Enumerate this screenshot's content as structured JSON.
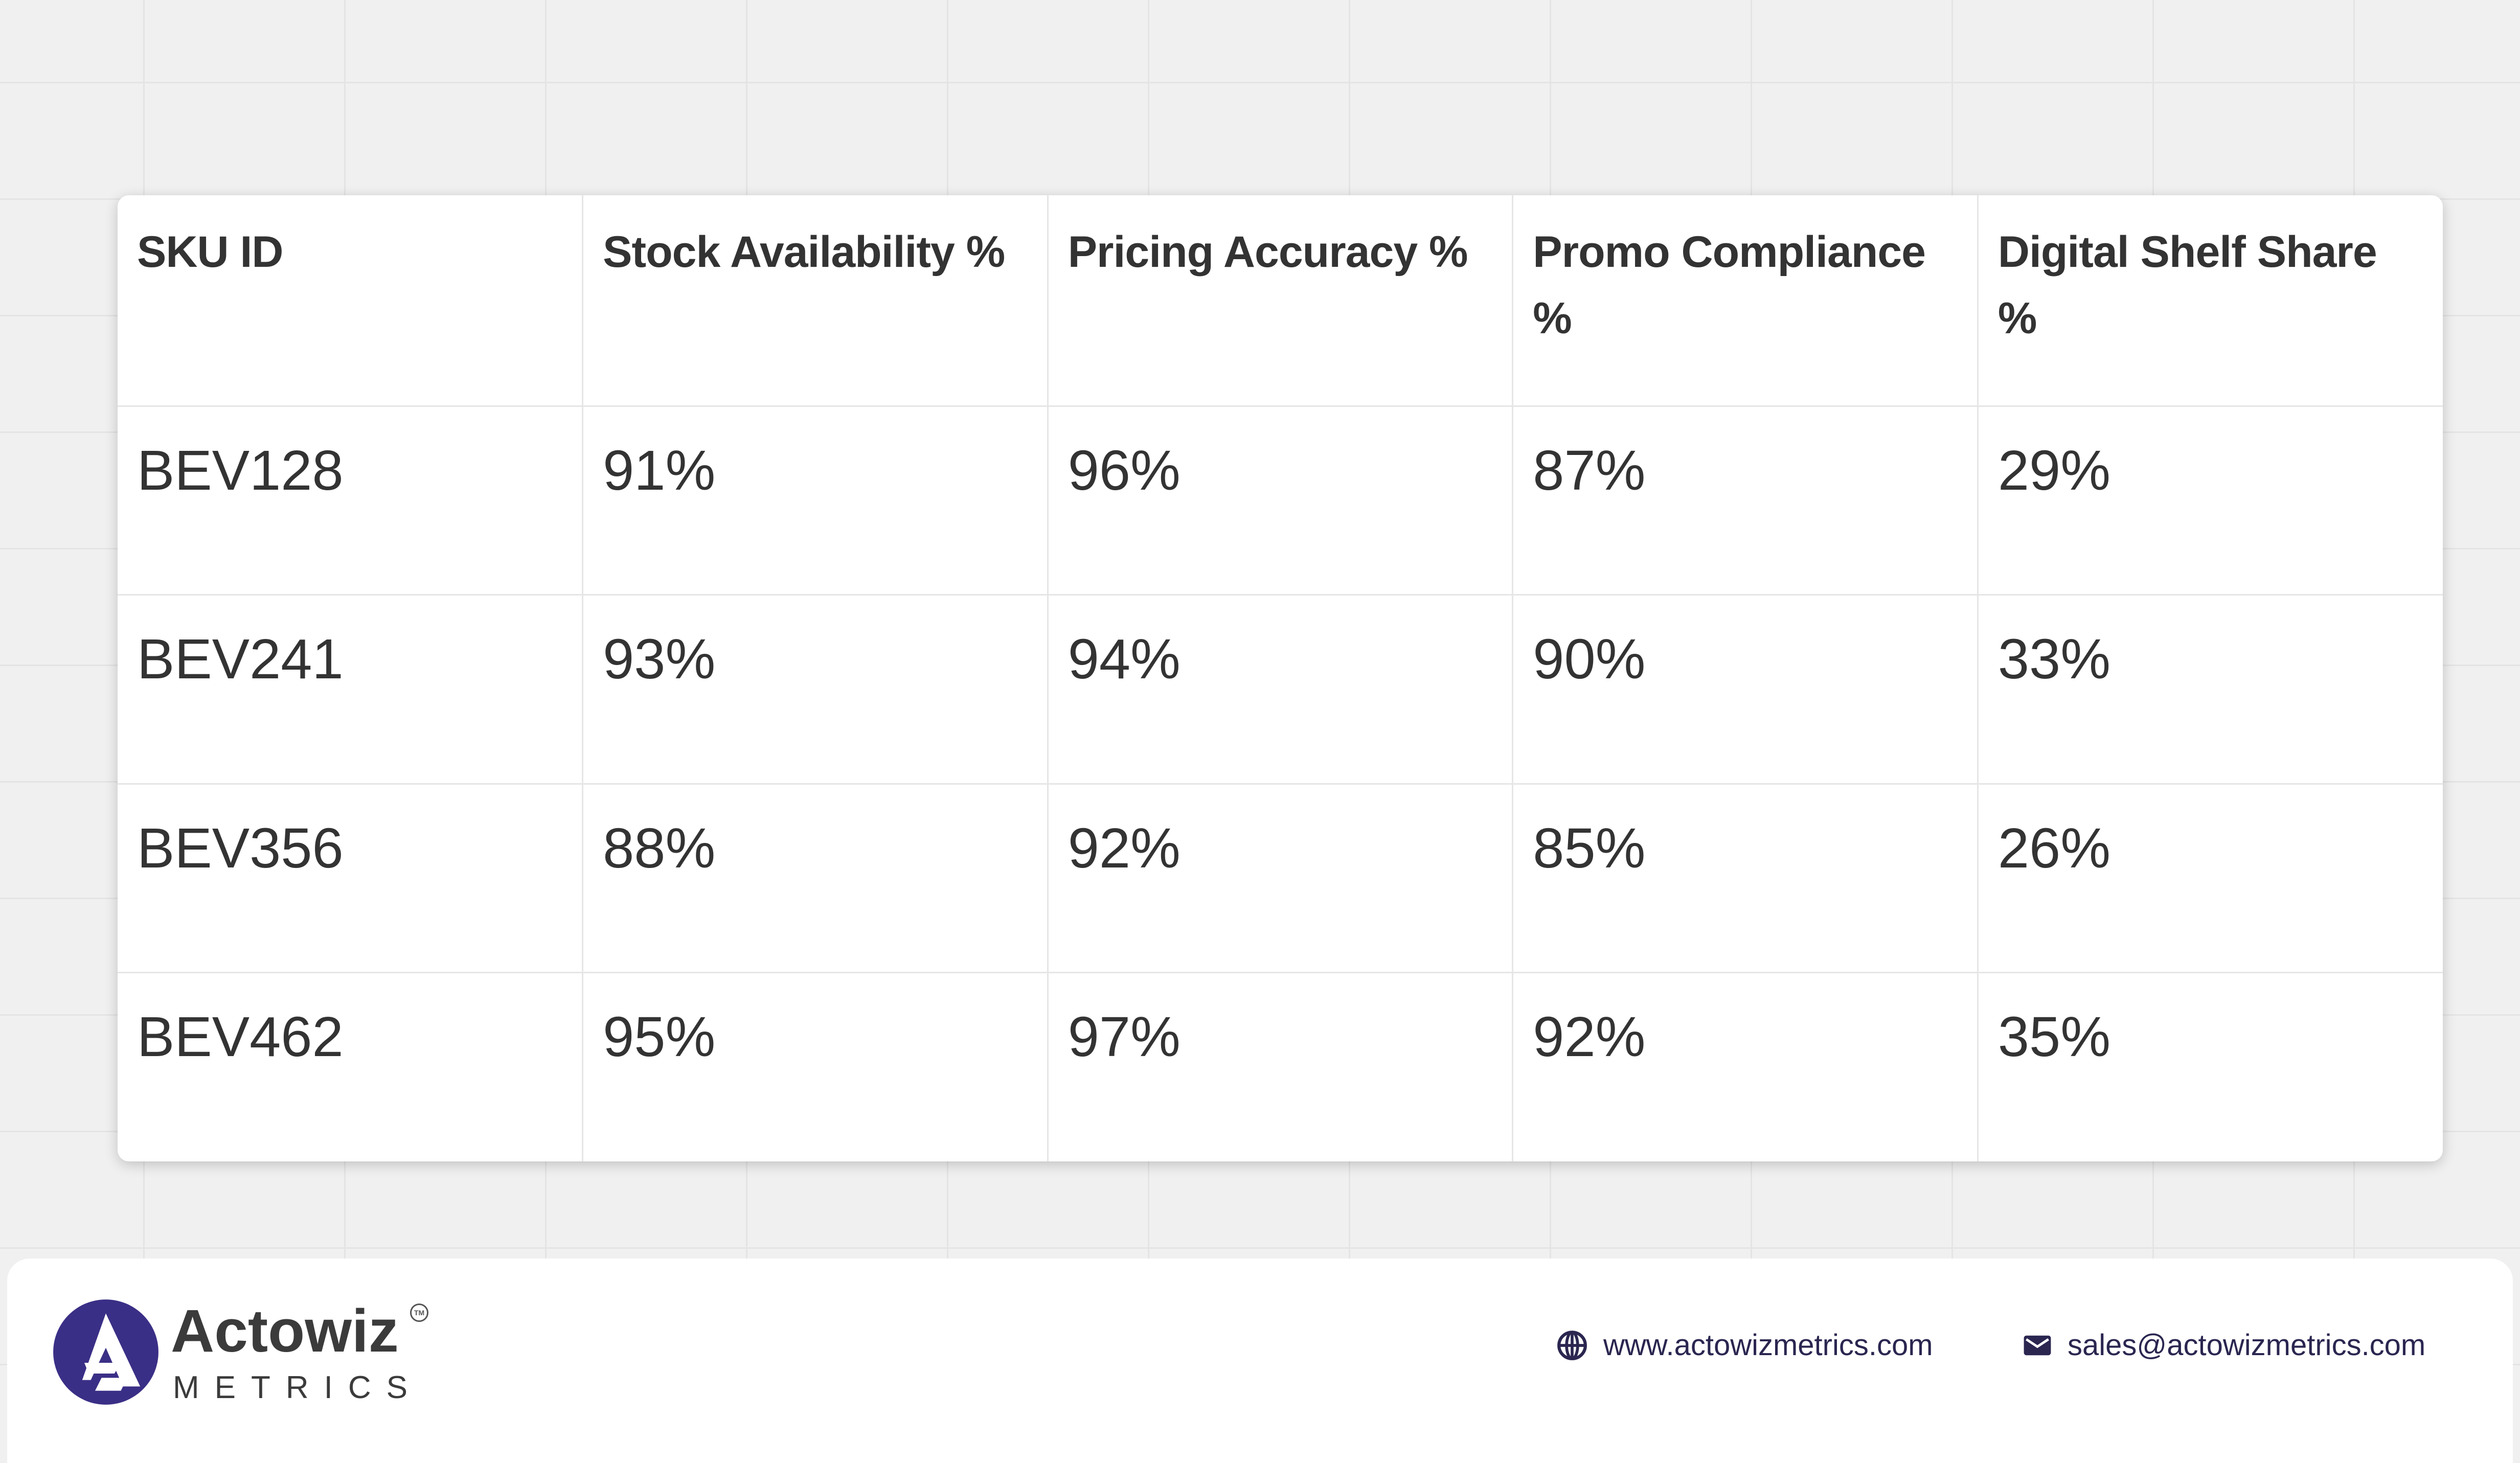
{
  "table": {
    "headers": [
      "SKU ID",
      "Stock Availability %",
      "Pricing Accuracy %",
      "Promo Compliance %",
      "Digital Shelf Share %"
    ],
    "rows": [
      [
        "BEV128",
        "91%",
        "96%",
        "87%",
        "29%"
      ],
      [
        "BEV241",
        "93%",
        "94%",
        "90%",
        "33%"
      ],
      [
        "BEV356",
        "88%",
        "92%",
        "85%",
        "26%"
      ],
      [
        "BEV462",
        "95%",
        "97%",
        "92%",
        "35%"
      ]
    ]
  },
  "footer": {
    "brand_name": "Actowiz",
    "brand_sub": "METRICS",
    "trademark": "TM",
    "website": "www.actowizmetrics.com",
    "email": "sales@actowizmetrics.com",
    "website_icon": "globe-icon",
    "email_icon": "envelope-icon"
  },
  "colors": {
    "brand": "#3a2f86",
    "text": "#333333",
    "background": "#f0f0f0"
  }
}
